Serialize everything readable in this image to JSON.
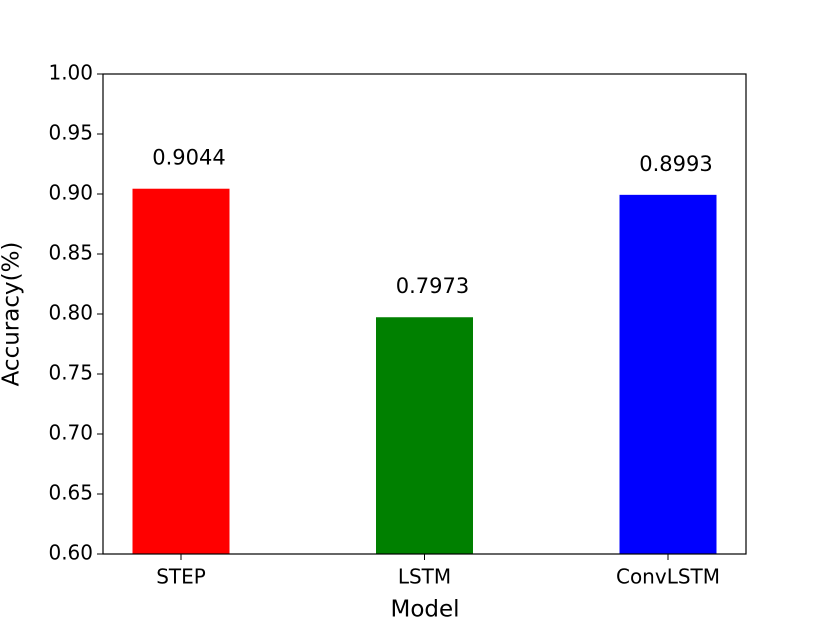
{
  "chart_data": {
    "type": "bar",
    "x_label": "Model",
    "y_label": "Accuracy(%)",
    "categories": [
      "STEP",
      "LSTM",
      "ConvLSTM"
    ],
    "values": [
      0.9044,
      0.7973,
      0.8993
    ],
    "colors": [
      "#ff0000",
      "#008000",
      "#0000ff"
    ],
    "ylim": [
      0.6,
      1.0
    ],
    "yticks": [
      {
        "value": 0.6,
        "label": "0.60"
      },
      {
        "value": 0.65,
        "label": "0.65"
      },
      {
        "value": 0.7,
        "label": "0.70"
      },
      {
        "value": 0.75,
        "label": "0.75"
      },
      {
        "value": 0.8,
        "label": "0.80"
      },
      {
        "value": 0.85,
        "label": "0.85"
      },
      {
        "value": 0.9,
        "label": "0.90"
      },
      {
        "value": 0.95,
        "label": "0.95"
      },
      {
        "value": 1.0,
        "label": "1.00"
      }
    ],
    "grid": false
  }
}
